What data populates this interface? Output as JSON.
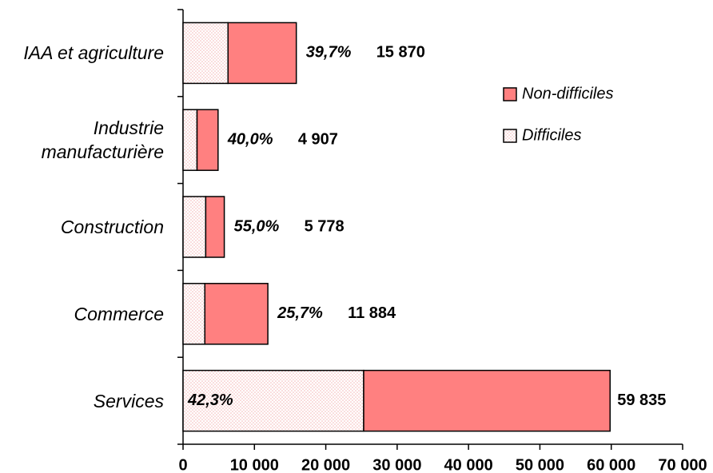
{
  "chart_data": {
    "type": "bar",
    "orientation": "horizontal",
    "stacked": true,
    "categories": [
      "IAA et agriculture",
      "Industrie manufacturière",
      "Construction",
      "Commerce",
      "Services"
    ],
    "series": [
      {
        "name": "Difficiles",
        "color": "#f4b6b6",
        "pattern": "dots",
        "values": [
          6300,
          1963,
          3178,
          3054,
          25310
        ]
      },
      {
        "name": "Non-difficiles",
        "color": "#ff8080",
        "values": [
          9570,
          2944,
          2600,
          8830,
          34525
        ]
      }
    ],
    "totals": {
      "values": [
        15870,
        4907,
        5778,
        11884,
        59835
      ],
      "value_labels": [
        "15 870",
        "4 907",
        "5 778",
        "11 884",
        "59 835"
      ]
    },
    "shares": {
      "values": [
        39.7,
        40.0,
        55.0,
        25.7,
        42.3
      ],
      "value_labels": [
        "39,7%",
        "40,0%",
        "55,0%",
        "25,7%",
        "42,3%"
      ]
    },
    "xlim": [
      0,
      70000
    ],
    "xticks": [
      0,
      {
        "value": 10000,
        "label": "10 000"
      },
      {
        "value": 20000,
        "label": "20 000"
      },
      {
        "value": 30000,
        "label": "30 000"
      },
      {
        "value": 40000,
        "label": "40 000"
      },
      {
        "value": 50000,
        "label": "50 000"
      },
      {
        "value": 60000,
        "label": "60 000"
      },
      {
        "value": 70000,
        "label": "70 000"
      }
    ],
    "legend": "right"
  }
}
